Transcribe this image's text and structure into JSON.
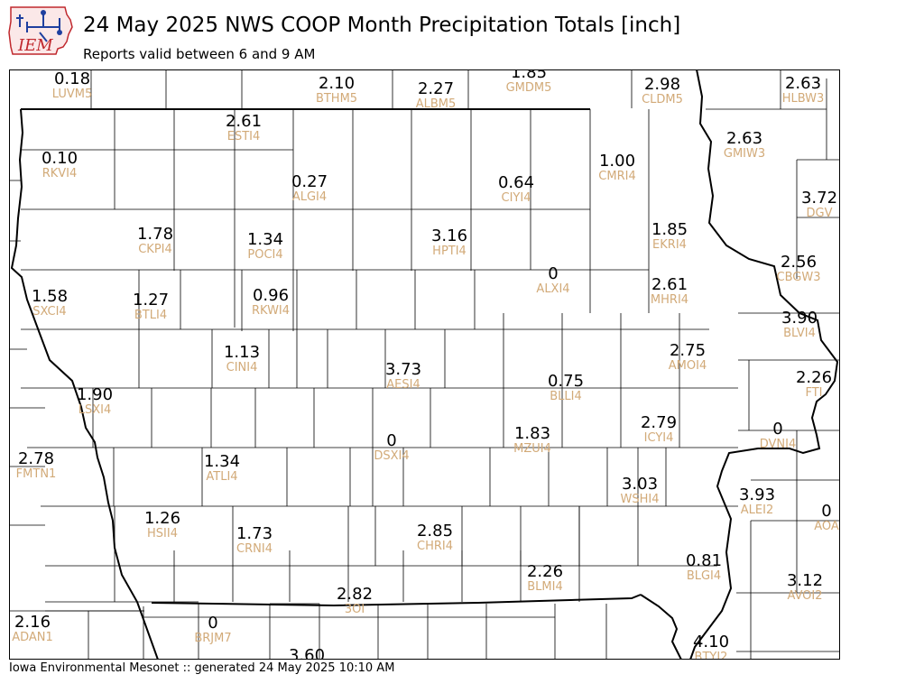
{
  "header": {
    "logo_text": "IEM",
    "title": "24 May 2025 NWS COOP Month Precipitation Totals [inch]",
    "subtitle": "Reports valid between 6 and 9 AM"
  },
  "footer": {
    "text": "Iowa Environmental Mesonet :: generated 24 May 2025 10:10 AM"
  },
  "colors": {
    "value_text": "#000000",
    "station_id_text": "#d2aa78",
    "boundaries": "#000000",
    "logo_red": "#c0282d",
    "logo_blue": "#1f3f9f"
  },
  "stations": [
    {
      "value": "0.18",
      "id": "LUVM5"
    },
    {
      "value": "2.10",
      "id": "BTHM5"
    },
    {
      "value": "2.27",
      "id": "ALBM5"
    },
    {
      "value": "1.85",
      "id": "GMDM5"
    },
    {
      "value": "2.98",
      "id": "CLDM5"
    },
    {
      "value": "2.63",
      "id": "HLBW3"
    },
    {
      "value": "2.61",
      "id": "ESTI4"
    },
    {
      "value": "0.10",
      "id": "RKVI4"
    },
    {
      "value": "2.63",
      "id": "GMIW3"
    },
    {
      "value": "0.27",
      "id": "ALGI4"
    },
    {
      "value": "0.64",
      "id": "CIYI4"
    },
    {
      "value": "1.00",
      "id": "CMRI4"
    },
    {
      "value": "3.72",
      "id": "DGV"
    },
    {
      "value": "1.78",
      "id": "CKPI4"
    },
    {
      "value": "1.34",
      "id": "POCI4"
    },
    {
      "value": "3.16",
      "id": "HPTI4"
    },
    {
      "value": "1.85",
      "id": "EKRI4"
    },
    {
      "value": "2.56",
      "id": "CBGW3"
    },
    {
      "value": "0",
      "id": "ALXI4"
    },
    {
      "value": "2.61",
      "id": "MHRI4"
    },
    {
      "value": "1.58",
      "id": "SXCI4"
    },
    {
      "value": "1.27",
      "id": "BTLI4"
    },
    {
      "value": "0.96",
      "id": "RKWI4"
    },
    {
      "value": "3.90",
      "id": "BLVI4"
    },
    {
      "value": "1.13",
      "id": "CINI4"
    },
    {
      "value": "2.75",
      "id": "AMOI4"
    },
    {
      "value": "3.73",
      "id": "AESI4"
    },
    {
      "value": "0.75",
      "id": "BLLI4"
    },
    {
      "value": "2.26",
      "id": "FTI"
    },
    {
      "value": "1.90",
      "id": "LSXI4"
    },
    {
      "value": "2.79",
      "id": "ICYI4"
    },
    {
      "value": "0",
      "id": "DVNI4"
    },
    {
      "value": "0",
      "id": "DSXI4"
    },
    {
      "value": "1.83",
      "id": "MZUI4"
    },
    {
      "value": "2.78",
      "id": "FMTN1"
    },
    {
      "value": "1.34",
      "id": "ATLI4"
    },
    {
      "value": "3.03",
      "id": "WSHI4"
    },
    {
      "value": "3.93",
      "id": "ALEI2"
    },
    {
      "value": "0",
      "id": "AOA"
    },
    {
      "value": "1.26",
      "id": "HSII4"
    },
    {
      "value": "1.73",
      "id": "CRNI4"
    },
    {
      "value": "2.85",
      "id": "CHRI4"
    },
    {
      "value": "2.26",
      "id": "BLMI4"
    },
    {
      "value": "0.81",
      "id": "BLGI4"
    },
    {
      "value": "3.12",
      "id": "AVOI2"
    },
    {
      "value": "2.82",
      "id": "3OI"
    },
    {
      "value": "2.16",
      "id": "ADAN1"
    },
    {
      "value": "0",
      "id": "BRJM7"
    },
    {
      "value": "3.60",
      "id": ""
    },
    {
      "value": "4.10",
      "id": "BTYI2"
    }
  ]
}
